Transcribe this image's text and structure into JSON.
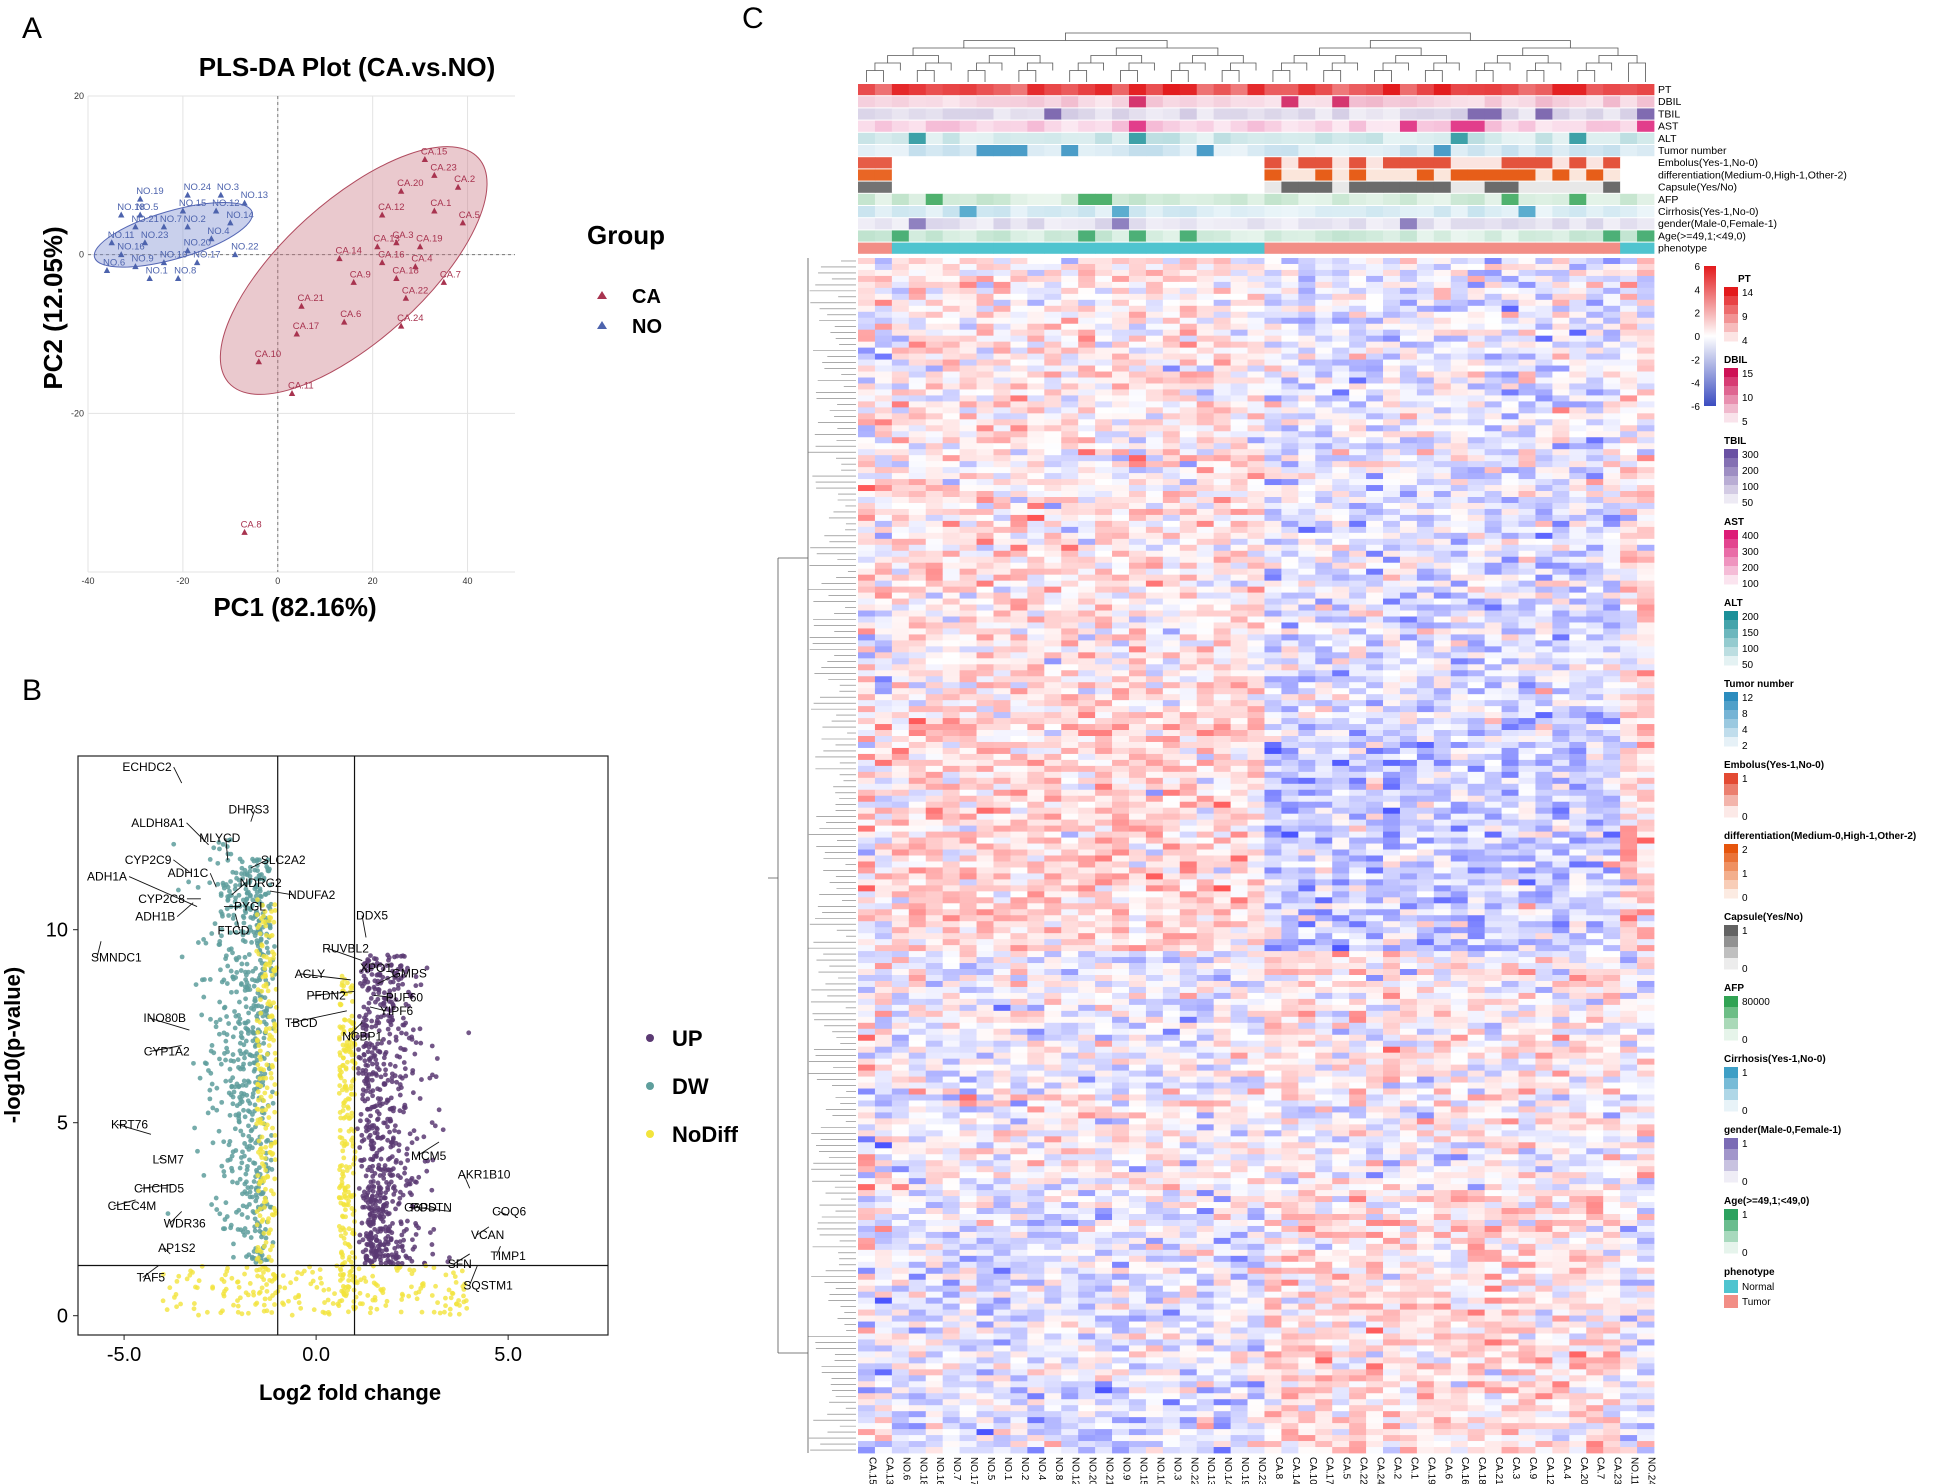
{
  "panel_labels": [
    "A",
    "B",
    "C"
  ],
  "chart_data": [
    {
      "type": "scatter",
      "panel": "A",
      "title": "PLS-DA Plot (CA.vs.NO)",
      "xlabel": "PC1 (82.16%)",
      "ylabel": "PC2 (12.05%)",
      "xlim": [
        -40,
        50
      ],
      "ylim": [
        -40,
        20
      ],
      "xticks": [
        "-40",
        "-20",
        "0",
        "20",
        "40"
      ],
      "yticks": [
        "20",
        "0",
        "-20"
      ],
      "legend_title": "Group",
      "legend_placement": "right",
      "series": [
        {
          "name": "CA",
          "color": "#a8334f",
          "points": [
            {
              "label": "CA.15",
              "x": 31,
              "y": 12
            },
            {
              "label": "CA.23",
              "x": 33,
              "y": 10
            },
            {
              "label": "CA.2",
              "x": 38,
              "y": 8.5
            },
            {
              "label": "CA.20",
              "x": 26,
              "y": 8
            },
            {
              "label": "CA.1",
              "x": 33,
              "y": 5.5
            },
            {
              "label": "CA.5",
              "x": 39,
              "y": 4
            },
            {
              "label": "CA.12",
              "x": 22,
              "y": 5
            },
            {
              "label": "CA.13",
              "x": 21,
              "y": 1
            },
            {
              "label": "CA.3",
              "x": 25,
              "y": 1.5
            },
            {
              "label": "CA.19",
              "x": 30,
              "y": 1
            },
            {
              "label": "CA.14",
              "x": 13,
              "y": -0.5
            },
            {
              "label": "CA.16",
              "x": 22,
              "y": -1
            },
            {
              "label": "CA.4",
              "x": 29,
              "y": -1.5
            },
            {
              "label": "CA.9",
              "x": 16,
              "y": -3.5
            },
            {
              "label": "CA.18",
              "x": 25,
              "y": -3
            },
            {
              "label": "CA.7",
              "x": 35,
              "y": -3.5
            },
            {
              "label": "CA.22",
              "x": 27,
              "y": -5.5
            },
            {
              "label": "CA.21",
              "x": 5,
              "y": -6.5
            },
            {
              "label": "CA.6",
              "x": 14,
              "y": -8.5
            },
            {
              "label": "CA.24",
              "x": 26,
              "y": -9
            },
            {
              "label": "CA.17",
              "x": 4,
              "y": -10
            },
            {
              "label": "CA.10",
              "x": -4,
              "y": -13.5
            },
            {
              "label": "CA.11",
              "x": 3,
              "y": -17.5
            },
            {
              "label": "CA.8",
              "x": -7,
              "y": -35
            }
          ]
        },
        {
          "name": "NO",
          "color": "#4d63ad",
          "points": [
            {
              "label": "NO.3",
              "x": -12,
              "y": 7.5
            },
            {
              "label": "NO.24",
              "x": -19,
              "y": 7.5
            },
            {
              "label": "NO.19",
              "x": -29,
              "y": 7
            },
            {
              "label": "NO.13",
              "x": -7,
              "y": 6.5
            },
            {
              "label": "NO.15",
              "x": -20,
              "y": 5.5
            },
            {
              "label": "NO.12",
              "x": -13,
              "y": 5.5
            },
            {
              "label": "NO.18",
              "x": -33,
              "y": 5
            },
            {
              "label": "NO.5",
              "x": -29,
              "y": 5
            },
            {
              "label": "NO.14",
              "x": -10,
              "y": 4
            },
            {
              "label": "NO.21",
              "x": -30,
              "y": 3.5
            },
            {
              "label": "NO.7",
              "x": -24,
              "y": 3.5
            },
            {
              "label": "NO.2",
              "x": -19,
              "y": 3.5
            },
            {
              "label": "NO.4",
              "x": -14,
              "y": 2
            },
            {
              "label": "NO.11",
              "x": -35,
              "y": 1.5
            },
            {
              "label": "NO.23",
              "x": -28,
              "y": 1.5
            },
            {
              "label": "NO.20",
              "x": -19,
              "y": 0.5
            },
            {
              "label": "NO.16",
              "x": -33,
              "y": 0
            },
            {
              "label": "NO.22",
              "x": -9,
              "y": 0
            },
            {
              "label": "NO.10",
              "x": -24,
              "y": -1
            },
            {
              "label": "NO.17",
              "x": -17,
              "y": -1
            },
            {
              "label": "NO.9",
              "x": -30,
              "y": -1.5
            },
            {
              "label": "NO.6",
              "x": -36,
              "y": -2
            },
            {
              "label": "NO.1",
              "x": -27,
              "y": -3
            },
            {
              "label": "NO.8",
              "x": -21,
              "y": -3
            }
          ]
        }
      ]
    },
    {
      "type": "scatter",
      "panel": "B",
      "xlabel": "Log2 fold change",
      "ylabel": "-log10(p-value)",
      "xlim": [
        -6.2,
        7.6
      ],
      "ylim": [
        -0.5,
        14.5
      ],
      "xticks": [
        "-5.0",
        "0.0",
        "5.0"
      ],
      "yticks": [
        "0",
        "5",
        "10"
      ],
      "thresholds": {
        "x": [
          -1,
          1
        ],
        "y": 1.3
      },
      "legend_placement": "right",
      "series": [
        {
          "name": "UP",
          "color": "#5b3a73"
        },
        {
          "name": "DW",
          "color": "#5e9e9c"
        },
        {
          "name": "NoDiff",
          "color": "#f2e43c"
        }
      ],
      "labeled_genes": [
        {
          "gene": "ECHDC2",
          "x": -3.5,
          "y": 13.8
        },
        {
          "gene": "DHRS3",
          "x": -1.7,
          "y": 12.8
        },
        {
          "gene": "ALDH8A1",
          "x": -2.8,
          "y": 12.2
        },
        {
          "gene": "MLYCD",
          "x": -2.3,
          "y": 11.8
        },
        {
          "gene": "SLC2A2",
          "x": -1.7,
          "y": 11.6
        },
        {
          "gene": "CYP2C9",
          "x": -3.3,
          "y": 11.5
        },
        {
          "gene": "ADH1C",
          "x": -2.6,
          "y": 11.1
        },
        {
          "gene": "NDRG2",
          "x": -2.2,
          "y": 10.9
        },
        {
          "gene": "ADH1A",
          "x": -3.1,
          "y": 10.6
        },
        {
          "gene": "CYP2C8",
          "x": -3.0,
          "y": 10.8
        },
        {
          "gene": "PYGL",
          "x": -2.4,
          "y": 10.6
        },
        {
          "gene": "NDUFA2",
          "x": -1.2,
          "y": 11.0
        },
        {
          "gene": "ADH1B",
          "x": -3.2,
          "y": 10.7
        },
        {
          "gene": "FTCD",
          "x": -2.1,
          "y": 10.4
        },
        {
          "gene": "SMNDC1",
          "x": -5.6,
          "y": 9.7
        },
        {
          "gene": "DDX5",
          "x": 1.3,
          "y": 9.8
        },
        {
          "gene": "RUVBL2",
          "x": 1.2,
          "y": 9.2
        },
        {
          "gene": "XPO1",
          "x": 1.3,
          "y": 8.9
        },
        {
          "gene": "GMPS",
          "x": 1.6,
          "y": 8.6
        },
        {
          "gene": "ACLY",
          "x": 0.9,
          "y": 8.7
        },
        {
          "gene": "PFDN2",
          "x": 1.0,
          "y": 8.4
        },
        {
          "gene": "PUF60",
          "x": 1.5,
          "y": 8.3
        },
        {
          "gene": "TBCD",
          "x": 0.8,
          "y": 7.9
        },
        {
          "gene": "YIPF6",
          "x": 1.4,
          "y": 8.0
        },
        {
          "gene": "NCBP1",
          "x": 1.2,
          "y": 7.6
        },
        {
          "gene": "INO80B",
          "x": -3.3,
          "y": 7.4
        },
        {
          "gene": "CYP1A2",
          "x": -3.5,
          "y": 7.0
        },
        {
          "gene": "MCM5",
          "x": 3.2,
          "y": 4.5
        },
        {
          "gene": "KRT76",
          "x": -4.3,
          "y": 4.7
        },
        {
          "gene": "LSM7",
          "x": -4.0,
          "y": 4.1
        },
        {
          "gene": "CHCHD5",
          "x": -3.7,
          "y": 3.4
        },
        {
          "gene": "CLEC4M",
          "x": -4.7,
          "y": 3.0
        },
        {
          "gene": "WDR36",
          "x": -3.5,
          "y": 2.7
        },
        {
          "gene": "AKR1B10",
          "x": 4.0,
          "y": 3.3
        },
        {
          "gene": "G6PD",
          "x": 2.5,
          "y": 2.8
        },
        {
          "gene": "POSTN",
          "x": 3.5,
          "y": 2.7
        },
        {
          "gene": "COQ6",
          "x": 5.0,
          "y": 2.6
        },
        {
          "gene": "VCAN",
          "x": 4.5,
          "y": 2.3
        },
        {
          "gene": "AP1S2",
          "x": -3.8,
          "y": 1.6
        },
        {
          "gene": "SFN",
          "x": 4.0,
          "y": 1.6
        },
        {
          "gene": "TIMP1",
          "x": 4.8,
          "y": 1.8
        },
        {
          "gene": "TAF5",
          "x": -4.1,
          "y": 1.3
        },
        {
          "gene": "SQSTM1",
          "x": 4.2,
          "y": 1.3
        }
      ]
    },
    {
      "type": "heatmap",
      "panel": "C",
      "columns": [
        "CA.15",
        "CA.13",
        "NO.6",
        "NO.18",
        "NO.16",
        "NO.7",
        "NO.17",
        "NO.5",
        "NO.1",
        "NO.2",
        "NO.4",
        "NO.8",
        "NO.12",
        "NO.20",
        "NO.21",
        "NO.9",
        "NO.15",
        "NO.10",
        "NO.3",
        "NO.22",
        "NO.13",
        "NO.14",
        "NO.19",
        "NO.23",
        "CA.8",
        "CA.14",
        "CA.10",
        "CA.17",
        "CA.5",
        "CA.22",
        "CA.24",
        "CA.2",
        "CA.1",
        "CA.19",
        "CA.6",
        "CA.16",
        "CA.18",
        "CA.21",
        "CA.3",
        "CA.9",
        "CA.12",
        "CA.4",
        "CA.20",
        "CA.7",
        "CA.23",
        "NO.11",
        "NO.24"
      ],
      "annotation_tracks": [
        "PT",
        "DBIL",
        "TBIL",
        "AST",
        "ALT",
        "Tumor number",
        "Embolus(Yes-1,No-0)",
        "differentiation(Medium-0,High-1,Other-2)",
        "Capsule(Yes/No)",
        "AFP",
        "Cirrhosis(Yes-1,No-0)",
        "gender(Male-0,Female-1)",
        "Age(>=49,1;<49,0)",
        "phenotype"
      ],
      "color_scale": {
        "values": [
          "6",
          "4",
          "2",
          "0",
          "-2",
          "-4",
          "-6"
        ],
        "low": "#3b4cc0",
        "mid": "#ffffff",
        "high": "#e31a1c"
      },
      "legends": [
        {
          "title": "PT",
          "ticks": [
            "14",
            "9",
            "4"
          ],
          "color": "#e31a1c"
        },
        {
          "title": "DBIL",
          "ticks": [
            "15",
            "10",
            "5"
          ],
          "color": "#ce1256"
        },
        {
          "title": "TBIL",
          "ticks": [
            "300",
            "200",
            "100",
            "50"
          ],
          "color": "#6a51a3"
        },
        {
          "title": "AST",
          "ticks": [
            "400",
            "300",
            "200",
            "100"
          ],
          "color": "#dd1c77"
        },
        {
          "title": "ALT",
          "ticks": [
            "200",
            "150",
            "100",
            "50"
          ],
          "color": "#1c9099"
        },
        {
          "title": "Tumor number",
          "ticks": [
            "12",
            "8",
            "4",
            "2"
          ],
          "color": "#2b8cbe"
        },
        {
          "title": "Embolus(Yes-1,No-0)",
          "ticks": [
            "1",
            "0"
          ],
          "color": "#e34a33"
        },
        {
          "title": "differentiation(Medium-0,High-1,Other-2)",
          "ticks": [
            "2",
            "1",
            "0"
          ],
          "color": "#e6550d"
        },
        {
          "title": "Capsule(Yes/No)",
          "ticks": [
            "1",
            "0"
          ],
          "color": "#636363"
        },
        {
          "title": "AFP",
          "ticks": [
            "80000",
            "0"
          ],
          "color": "#31a354"
        },
        {
          "title": "Cirrhosis(Yes-1,No-0)",
          "ticks": [
            "1",
            "0"
          ],
          "color": "#3e9fc6"
        },
        {
          "title": "gender(Male-0,Female-1)",
          "ticks": [
            "1",
            "0"
          ],
          "color": "#7b6bb5"
        },
        {
          "title": "Age(>=49,1;<49,0)",
          "ticks": [
            "1",
            "0"
          ],
          "color": "#2ca25f"
        },
        {
          "title": "phenotype",
          "categories": [
            "Normal",
            "Tumor"
          ],
          "colors": [
            "#4fc4cf",
            "#f28e86"
          ]
        }
      ]
    }
  ]
}
